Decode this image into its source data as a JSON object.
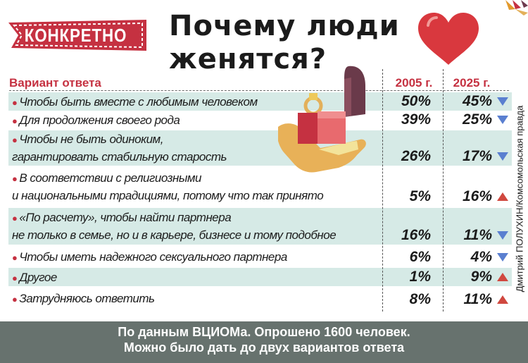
{
  "tag": "КОНКРЕТНО",
  "title_lines": [
    "Почему люди",
    "женятся?"
  ],
  "credit": "Дмитрий ПОЛУХИН/Комсомольская правда",
  "footer": {
    "line1": "По данным ВЦИОМа. Опрошено 1600 человек.",
    "line2": "Можно было дать до двух вариантов ответа"
  },
  "colors": {
    "accent_red": "#c53141",
    "row_shade": "#d6eae6",
    "arrow_down": "#5a7fd0",
    "arrow_up": "#d0483f",
    "footer_bg": "#67726e"
  },
  "icons": [
    "heart-icon",
    "ring-in-hand-illustration",
    "arrow-down-icon",
    "arrow-up-icon"
  ],
  "chart_data": {
    "type": "table",
    "columns": [
      "Вариант ответа",
      "2005 г.",
      "2025 г."
    ],
    "rows": [
      {
        "option": [
          "Чтобы быть вместе с любимым человеком"
        ],
        "v2005": "50%",
        "v2025": "45%",
        "trend": "down"
      },
      {
        "option": [
          "Для продолжения своего рода"
        ],
        "v2005": "39%",
        "v2025": "25%",
        "trend": "down"
      },
      {
        "option": [
          "Чтобы не быть одиноким,",
          "гарантировать стабильную старость"
        ],
        "v2005": "26%",
        "v2025": "17%",
        "trend": "down"
      },
      {
        "option": [
          "В соответствии с религиозными",
          "и национальными традициями, потому что так принято"
        ],
        "v2005": "5%",
        "v2025": "16%",
        "trend": "up"
      },
      {
        "option": [
          "«По расчету», чтобы найти партнера",
          "не только в семье, но и в карьере, бизнесе и тому подобное"
        ],
        "v2005": "16%",
        "v2025": "11%",
        "trend": "down"
      },
      {
        "option": [
          "Чтобы иметь надежного сексуального партнера"
        ],
        "v2005": "6%",
        "v2025": "4%",
        "trend": "down"
      },
      {
        "option": [
          "Другое"
        ],
        "v2005": "1%",
        "v2025": "9%",
        "trend": "up"
      },
      {
        "option": [
          "Затрудняюсь ответить"
        ],
        "v2005": "8%",
        "v2025": "11%",
        "trend": "up"
      }
    ]
  }
}
